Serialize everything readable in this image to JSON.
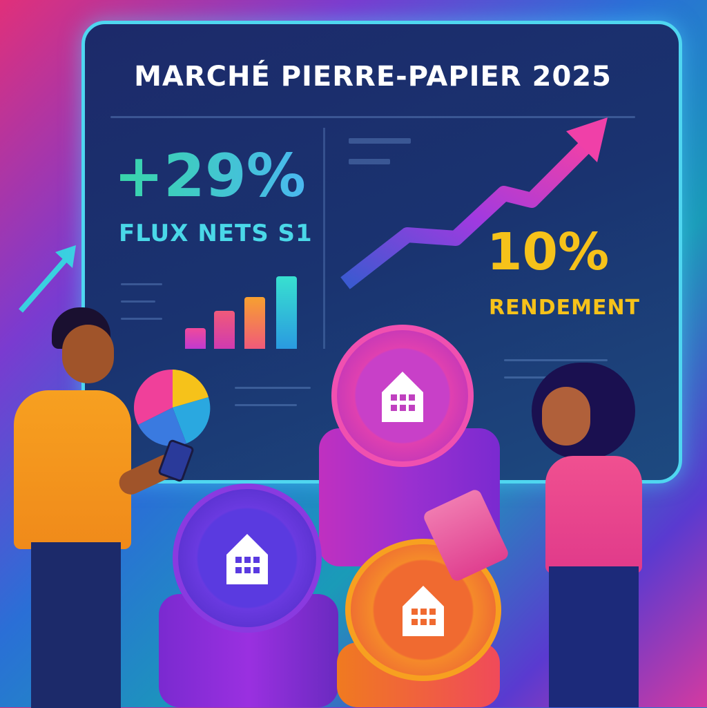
{
  "dashboard": {
    "title": "MARCHÉ PIERRE-PAPIER 2025",
    "kpi_left": {
      "value": "+29%",
      "label": "FLUX NETS S1"
    },
    "kpi_right": {
      "value": "10%",
      "label": "RENDEMENT"
    }
  },
  "colors": {
    "accent_green": "#38d6a8",
    "accent_cyan": "#4ad8e8",
    "accent_yellow": "#f6c21a",
    "arrow_pink": "#f040a8"
  },
  "icons": [
    "trend-arrow-icon",
    "bar-chart-icon",
    "pie-chart-icon",
    "house-coin-icon",
    "smartphone-icon",
    "tablet-icon"
  ]
}
